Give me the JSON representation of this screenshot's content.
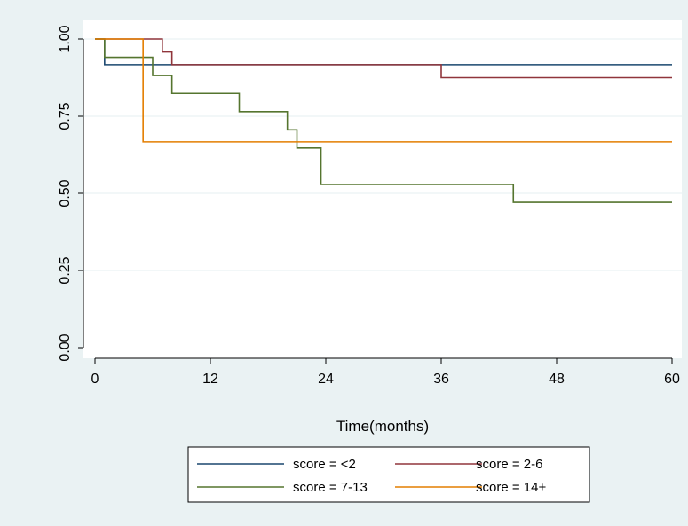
{
  "chart_data": {
    "type": "line",
    "step": true,
    "title": "",
    "xlabel": "Time(months)",
    "ylabel": "",
    "xlim": [
      0,
      60
    ],
    "ylim": [
      0,
      1
    ],
    "xticks": [
      0,
      12,
      24,
      36,
      48,
      60
    ],
    "yticks": [
      0,
      0.25,
      0.5,
      0.75,
      1
    ],
    "xtick_labels": [
      "0",
      "12",
      "24",
      "36",
      "48",
      "60"
    ],
    "ytick_labels": [
      "0.00",
      "0.25",
      "0.50",
      "0.75",
      "1.00"
    ],
    "grid": "horizontal",
    "legend_position": "bottom",
    "series": [
      {
        "name": "score = <2",
        "color": "#1a476f",
        "x": [
          0,
          1,
          60
        ],
        "y": [
          1.0,
          0.917,
          0.917
        ]
      },
      {
        "name": "score = 2-6",
        "color": "#90353b",
        "x": [
          0,
          7,
          8,
          36,
          60
        ],
        "y": [
          1.0,
          0.958,
          0.917,
          0.875,
          0.875
        ]
      },
      {
        "name": "score = 7-13",
        "color": "#55752f",
        "x": [
          0,
          1,
          6,
          8,
          15,
          20,
          21,
          23.5,
          43.5,
          60
        ],
        "y": [
          1.0,
          0.941,
          0.882,
          0.824,
          0.765,
          0.706,
          0.647,
          0.529,
          0.471,
          0.471
        ]
      },
      {
        "name": "score = 14+",
        "color": "#e37e00",
        "x": [
          0,
          5,
          60
        ],
        "y": [
          1.0,
          0.667,
          0.667
        ]
      }
    ]
  }
}
